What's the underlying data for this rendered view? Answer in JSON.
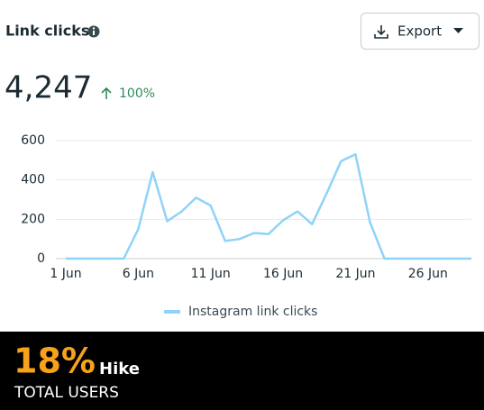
{
  "header": {
    "title": "Link clicks",
    "export": "Export"
  },
  "metric": {
    "value": "4,247",
    "change": "100%"
  },
  "chart_data": {
    "type": "line",
    "categories": [
      "1 Jun",
      null,
      null,
      null,
      null,
      "6 Jun",
      null,
      null,
      null,
      null,
      "11 Jun",
      null,
      null,
      null,
      null,
      "16 Jun",
      null,
      null,
      null,
      null,
      "21 Jun",
      null,
      null,
      null,
      null,
      "26 Jun",
      null,
      null,
      null
    ],
    "series": [
      {
        "name": "Instagram link clicks",
        "color": "#8fd3f8",
        "values": [
          0,
          0,
          0,
          0,
          0,
          150,
          440,
          190,
          240,
          310,
          270,
          90,
          100,
          130,
          125,
          195,
          240,
          175,
          330,
          495,
          530,
          185,
          0,
          0,
          0,
          0,
          0,
          0,
          0
        ]
      }
    ],
    "ylim": [
      0,
      600
    ],
    "yticks": [
      0,
      200,
      400,
      600
    ],
    "grid": true,
    "legend": "bottom"
  },
  "banner": {
    "percent": "18%",
    "hike": "Hike",
    "label": "TOTAL USERS"
  }
}
